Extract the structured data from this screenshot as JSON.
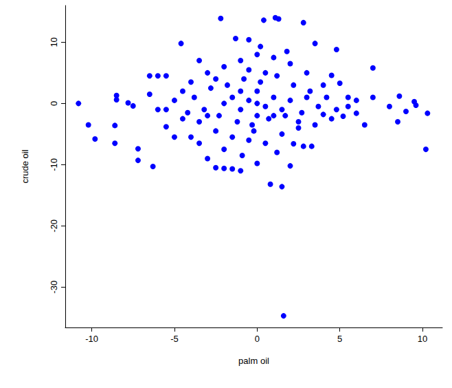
{
  "chart_data": {
    "type": "scatter",
    "xlabel": "palm oil",
    "ylabel": "crude oil",
    "color": "#0000ff",
    "marker": "circle",
    "grid": false,
    "xlim": [
      -11.6,
      11.2
    ],
    "xticks": [
      -10,
      -5,
      0,
      5,
      10
    ],
    "ylim": [
      -36.6,
      16
    ],
    "yticks": [
      -30,
      -20,
      -10,
      0,
      10
    ],
    "x": [
      -10.8,
      -10.2,
      -9.8,
      -8.6,
      -8.6,
      -8.5,
      -8.5,
      -7.2,
      -7.2,
      -7.8,
      -7.5,
      -6.3,
      -6.5,
      -6,
      -5.5,
      -4.6,
      -2.2,
      -1.5,
      1.6,
      0.4,
      1.1,
      1.3,
      1.5,
      0.8,
      2.8,
      4.8,
      7,
      9,
      10.3,
      10.2,
      9.5,
      9.6,
      8.5,
      8,
      8.6,
      7,
      6.5,
      2.8,
      2.2,
      0,
      -1,
      -0.9,
      -3.5,
      -4,
      -5,
      -3,
      -1.3,
      -0.5,
      0.2,
      3.5,
      4.5,
      5,
      6,
      5.2,
      -5.5,
      2,
      3.3,
      -2.5,
      -2,
      -4.5,
      -4,
      -3.5,
      -3,
      -2.5,
      -2,
      -1.5,
      -1,
      -0.5,
      0,
      0.5,
      1,
      1.5,
      2,
      2.5,
      3,
      3.5,
      4,
      4.5,
      5.5,
      -5,
      -4.2,
      -3.8,
      -3.2,
      -2.8,
      -2.3,
      -1.8,
      -1.2,
      -0.8,
      -0.3,
      0.2,
      0.7,
      1.2,
      1.7,
      2.2,
      2.7,
      3.2,
      3.7,
      4.2,
      4.8,
      -1.5,
      -1,
      -0.5,
      0,
      0.5,
      1,
      1.5,
      -2,
      2,
      0,
      0,
      -1,
      1,
      -0.5,
      0.5,
      -2.5,
      2.5,
      -3,
      3,
      -4.5,
      4,
      -6,
      6,
      -6.5,
      -5.5,
      5.5,
      -3.5,
      1.8,
      -2,
      1.2,
      -0.2
    ],
    "values": [
      0,
      -3.5,
      -5.8,
      -3.6,
      -6.5,
      1.3,
      0.6,
      -7.4,
      -9.3,
      0.1,
      -0.4,
      -10.3,
      4.5,
      4.5,
      4.5,
      9.8,
      13.9,
      -10.7,
      -34.7,
      13.6,
      14,
      13.8,
      -13.6,
      -13.2,
      13.2,
      8.8,
      5.8,
      -1.3,
      -1.6,
      -7.5,
      0.3,
      -0.3,
      -3,
      -0.5,
      1.2,
      1,
      -3.5,
      -7,
      -6.6,
      -9.8,
      -11,
      -8.5,
      -6.5,
      -5.5,
      -5.5,
      -9,
      10.6,
      10.4,
      9.3,
      9.8,
      4.6,
      3.3,
      -1.6,
      -2.1,
      -3.8,
      -10.2,
      -7,
      -10.5,
      -10.6,
      2,
      3.5,
      -3,
      5,
      -4.5,
      6,
      -5.5,
      7,
      -6,
      8,
      -6.5,
      7.5,
      -5,
      6.5,
      -4,
      5,
      -3.5,
      3,
      -2.5,
      1,
      0.5,
      -1.5,
      1,
      -1,
      2.5,
      -2,
      3,
      -3,
      4,
      -3.5,
      3.5,
      -2.5,
      4.5,
      -2,
      3,
      -1.5,
      2,
      -0.5,
      1,
      -1,
      1,
      -1,
      0.5,
      0,
      -0.5,
      1,
      -1,
      0,
      0.5,
      2,
      -2,
      2,
      -2,
      5.5,
      5,
      4,
      -3,
      -2,
      1,
      -2.5,
      -1.8,
      -1,
      0.5,
      1.5,
      -1,
      -0.5,
      7,
      8.5,
      -7.5,
      -8,
      -4.5
    ]
  }
}
